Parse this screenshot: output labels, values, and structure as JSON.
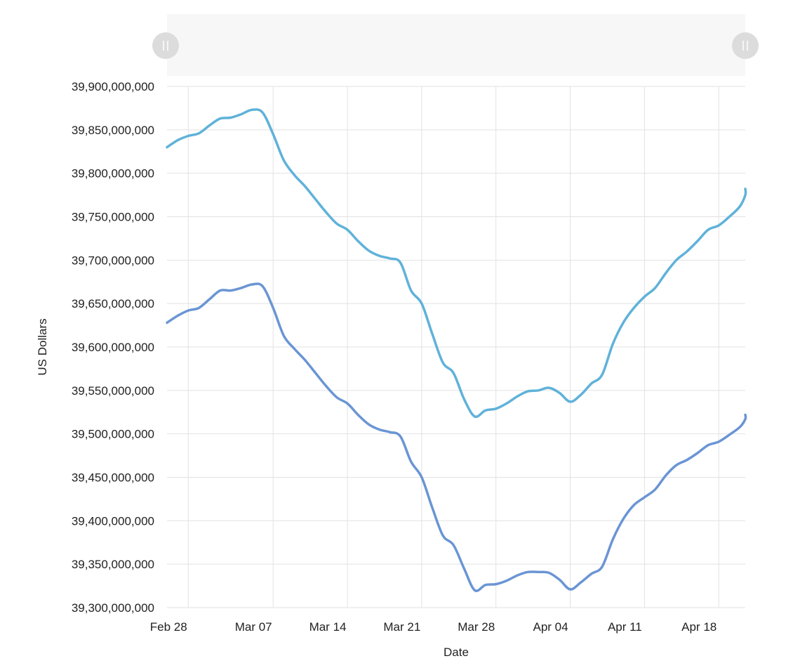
{
  "chart_data": {
    "type": "line",
    "title": "",
    "xlabel": "Date",
    "ylabel": "US Dollars",
    "ylim": [
      39300000000,
      39900000000
    ],
    "y_ticks": [
      39300000000,
      39350000000,
      39400000000,
      39450000000,
      39500000000,
      39550000000,
      39600000000,
      39650000000,
      39700000000,
      39750000000,
      39800000000,
      39850000000,
      39900000000
    ],
    "y_tick_labels": [
      "39,300,000,000",
      "39,350,000,000",
      "39,400,000,000",
      "39,450,000,000",
      "39,500,000,000",
      "39,550,000,000",
      "39,600,000,000",
      "39,650,000,000",
      "39,700,000,000",
      "39,750,000,000",
      "39,800,000,000",
      "39,850,000,000",
      "39,900,000,000"
    ],
    "xlim": [
      "2024-02-26",
      "2024-04-20"
    ],
    "x_ticks": [
      "2024-02-28",
      "2024-03-07",
      "2024-03-14",
      "2024-03-21",
      "2024-03-28",
      "2024-04-04",
      "2024-04-11",
      "2024-04-18"
    ],
    "x_tick_labels": [
      "Feb 28",
      "Mar 07",
      "Mar 14",
      "Mar 21",
      "Mar 28",
      "Apr 04",
      "Apr 11",
      "Apr 18"
    ],
    "grid": true,
    "colors": [
      "#5fb2d9",
      "#6a95d4"
    ],
    "series": [
      {
        "points": [
          [
            "2024-02-26",
            39830000000
          ],
          [
            "2024-02-27",
            39838000000
          ],
          [
            "2024-02-28",
            39843000000
          ],
          [
            "2024-02-29",
            39846000000
          ],
          [
            "2024-03-01",
            39855000000
          ],
          [
            "2024-03-02",
            39863000000
          ],
          [
            "2024-03-03",
            39864000000
          ],
          [
            "2024-03-04",
            39868000000
          ],
          [
            "2024-03-05",
            39873000000
          ],
          [
            "2024-03-06",
            39870000000
          ],
          [
            "2024-03-07",
            39845000000
          ],
          [
            "2024-03-08",
            39815000000
          ],
          [
            "2024-03-09",
            39798000000
          ],
          [
            "2024-03-10",
            39785000000
          ],
          [
            "2024-03-11",
            39770000000
          ],
          [
            "2024-03-12",
            39755000000
          ],
          [
            "2024-03-13",
            39742000000
          ],
          [
            "2024-03-14",
            39735000000
          ],
          [
            "2024-03-15",
            39722000000
          ],
          [
            "2024-03-16",
            39711000000
          ],
          [
            "2024-03-17",
            39705000000
          ],
          [
            "2024-03-18",
            39702000000
          ],
          [
            "2024-03-19",
            39697000000
          ],
          [
            "2024-03-20",
            39665000000
          ],
          [
            "2024-03-21",
            39650000000
          ],
          [
            "2024-03-22",
            39615000000
          ],
          [
            "2024-03-23",
            39582000000
          ],
          [
            "2024-03-24",
            39570000000
          ],
          [
            "2024-03-25",
            39540000000
          ],
          [
            "2024-03-26",
            39520000000
          ],
          [
            "2024-03-27",
            39527000000
          ],
          [
            "2024-03-28",
            39529000000
          ],
          [
            "2024-03-29",
            39535000000
          ],
          [
            "2024-03-30",
            39543000000
          ],
          [
            "2024-03-31",
            39549000000
          ],
          [
            "2024-04-01",
            39550000000
          ],
          [
            "2024-04-02",
            39553000000
          ],
          [
            "2024-04-03",
            39547000000
          ],
          [
            "2024-04-04",
            39537000000
          ],
          [
            "2024-04-05",
            39545000000
          ],
          [
            "2024-04-06",
            39558000000
          ],
          [
            "2024-04-07",
            39568000000
          ],
          [
            "2024-04-08",
            39603000000
          ],
          [
            "2024-04-09",
            39628000000
          ],
          [
            "2024-04-10",
            39645000000
          ],
          [
            "2024-04-11",
            39658000000
          ],
          [
            "2024-04-12",
            39668000000
          ],
          [
            "2024-04-13",
            39685000000
          ],
          [
            "2024-04-14",
            39700000000
          ],
          [
            "2024-04-15",
            39710000000
          ],
          [
            "2024-04-16",
            39722000000
          ],
          [
            "2024-04-17",
            39735000000
          ],
          [
            "2024-04-18",
            39740000000
          ],
          [
            "2024-04-19",
            39750000000
          ],
          [
            "2024-04-20",
            39762000000
          ],
          [
            "2024-04-21",
            39775000000
          ],
          [
            "2024-04-22",
            39782000000
          ]
        ]
      },
      {
        "points": [
          [
            "2024-02-26",
            39628000000
          ],
          [
            "2024-02-27",
            39636000000
          ],
          [
            "2024-02-28",
            39642000000
          ],
          [
            "2024-02-29",
            39645000000
          ],
          [
            "2024-03-01",
            39655000000
          ],
          [
            "2024-03-02",
            39665000000
          ],
          [
            "2024-03-03",
            39665000000
          ],
          [
            "2024-03-04",
            39668000000
          ],
          [
            "2024-03-05",
            39672000000
          ],
          [
            "2024-03-06",
            39670000000
          ],
          [
            "2024-03-07",
            39645000000
          ],
          [
            "2024-03-08",
            39613000000
          ],
          [
            "2024-03-09",
            39598000000
          ],
          [
            "2024-03-10",
            39585000000
          ],
          [
            "2024-03-11",
            39570000000
          ],
          [
            "2024-03-12",
            39555000000
          ],
          [
            "2024-03-13",
            39542000000
          ],
          [
            "2024-03-14",
            39535000000
          ],
          [
            "2024-03-15",
            39522000000
          ],
          [
            "2024-03-16",
            39511000000
          ],
          [
            "2024-03-17",
            39505000000
          ],
          [
            "2024-03-18",
            39502000000
          ],
          [
            "2024-03-19",
            39497000000
          ],
          [
            "2024-03-20",
            39468000000
          ],
          [
            "2024-03-21",
            39450000000
          ],
          [
            "2024-03-22",
            39415000000
          ],
          [
            "2024-03-23",
            39383000000
          ],
          [
            "2024-03-24",
            39372000000
          ],
          [
            "2024-03-25",
            39345000000
          ],
          [
            "2024-03-26",
            39320000000
          ],
          [
            "2024-03-27",
            39326000000
          ],
          [
            "2024-03-28",
            39327000000
          ],
          [
            "2024-03-29",
            39331000000
          ],
          [
            "2024-03-30",
            39337000000
          ],
          [
            "2024-03-31",
            39341000000
          ],
          [
            "2024-04-01",
            39341000000
          ],
          [
            "2024-04-02",
            39340000000
          ],
          [
            "2024-04-03",
            39332000000
          ],
          [
            "2024-04-04",
            39321000000
          ],
          [
            "2024-04-05",
            39329000000
          ],
          [
            "2024-04-06",
            39339000000
          ],
          [
            "2024-04-07",
            39347000000
          ],
          [
            "2024-04-08",
            39378000000
          ],
          [
            "2024-04-09",
            39402000000
          ],
          [
            "2024-04-10",
            39418000000
          ],
          [
            "2024-04-11",
            39427000000
          ],
          [
            "2024-04-12",
            39436000000
          ],
          [
            "2024-04-13",
            39452000000
          ],
          [
            "2024-04-14",
            39464000000
          ],
          [
            "2024-04-15",
            39470000000
          ],
          [
            "2024-04-16",
            39478000000
          ],
          [
            "2024-04-17",
            39487000000
          ],
          [
            "2024-04-18",
            39491000000
          ],
          [
            "2024-04-19",
            39499000000
          ],
          [
            "2024-04-20",
            39508000000
          ],
          [
            "2024-04-21",
            39517000000
          ],
          [
            "2024-04-22",
            39522000000
          ]
        ]
      }
    ]
  },
  "navigator": {
    "left_handle_icon": "drag-handle-icon",
    "right_handle_icon": "drag-handle-icon"
  }
}
